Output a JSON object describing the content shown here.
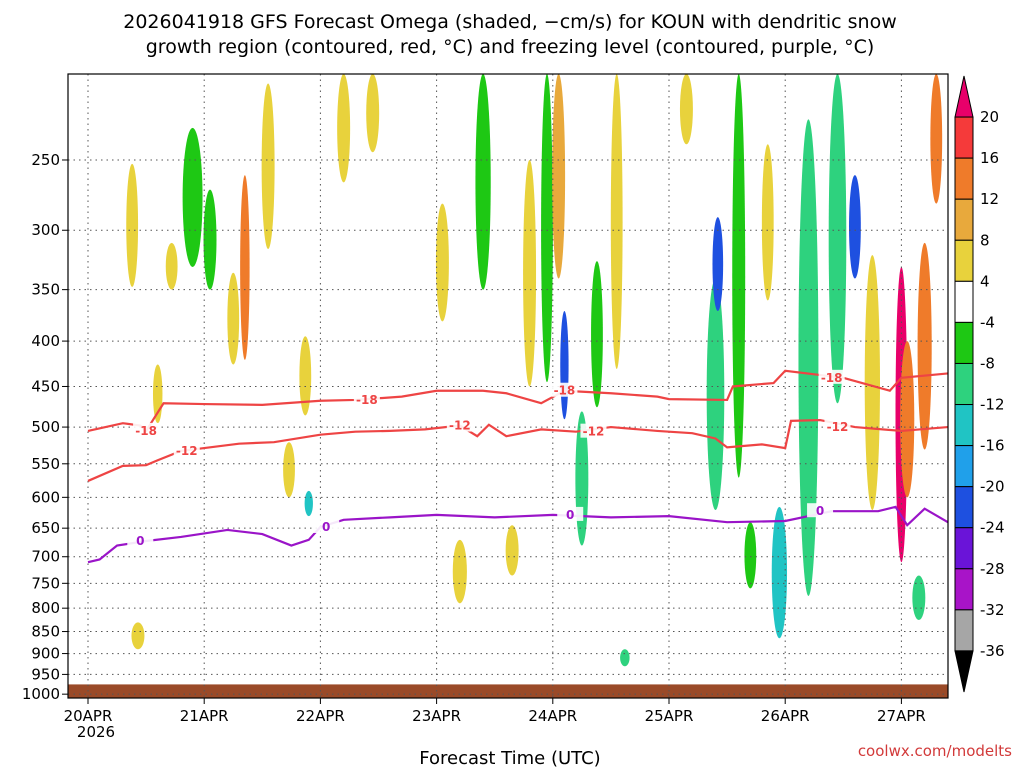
{
  "chart_data": {
    "type": "heatmap",
    "title_line1": "2026041918 GFS Forecast Omega (shaded, −cm/s) for KOUN with dendritic snow",
    "title_line2": "growth region (contoured, red, °C) and freezing level (contoured, purple, °C)",
    "xlabel": "Forecast Time (UTC)",
    "credit": "coolwx.com/modelts",
    "x_ticks": [
      "20APR",
      "21APR",
      "22APR",
      "23APR",
      "24APR",
      "25APR",
      "26APR",
      "27APR"
    ],
    "x_year": "2026",
    "x_range_days": [
      0,
      7.4
    ],
    "y_ticks": [
      250,
      300,
      350,
      400,
      450,
      500,
      550,
      600,
      650,
      700,
      750,
      800,
      850,
      900,
      950,
      1000
    ],
    "y_range_hpa": [
      200,
      1010
    ],
    "colorbar": {
      "labels": [
        20,
        16,
        12,
        8,
        4,
        -4,
        -8,
        -12,
        -16,
        -20,
        -24,
        -28,
        -32,
        -36
      ],
      "colors": [
        "#e8006a",
        "#f53a3a",
        "#ef7b2a",
        "#e8a93c",
        "#e8d23c",
        "#ffffff",
        "#1ec814",
        "#2ed27e",
        "#20c4c4",
        "#20a0ea",
        "#1e50e0",
        "#6a14d8",
        "#a814c8",
        "#a6a6a6",
        "#000000"
      ]
    },
    "ground": {
      "pressure_hpa": 975,
      "color": "#9a4a28"
    },
    "contours": [
      {
        "label": "-18",
        "color": "#ee4444",
        "x": [
          0,
          0.3,
          0.45,
          0.5,
          0.65,
          1.0,
          1.5,
          2.0,
          2.3,
          2.7,
          3.0,
          3.4,
          3.6,
          3.9,
          4.1,
          4.5,
          4.9,
          5.0,
          5.5,
          5.55,
          5.9,
          6.0,
          6.5,
          6.9,
          7.0,
          7.4
        ],
        "y": [
          505,
          495,
          498,
          505,
          470,
          471,
          472,
          467,
          466,
          462,
          455,
          455,
          458,
          470,
          455,
          458,
          462,
          465,
          466,
          450,
          446,
          432,
          440,
          455,
          440,
          435
        ]
      },
      {
        "label": "-12",
        "color": "#ee4444",
        "x": [
          0,
          0.3,
          0.5,
          0.6,
          0.8,
          1.0,
          1.3,
          1.6,
          2.0,
          2.3,
          2.6,
          2.9,
          3.2,
          3.35,
          3.45,
          3.6,
          3.9,
          4.2,
          4.5,
          4.9,
          5.2,
          5.4,
          5.5,
          5.8,
          6.0,
          6.05,
          6.3,
          6.6,
          7.0,
          7.4
        ],
        "y": [
          575,
          553,
          552,
          545,
          532,
          528,
          522,
          520,
          510,
          506,
          505,
          503,
          498,
          512,
          497,
          512,
          503,
          506,
          500,
          505,
          508,
          515,
          527,
          523,
          528,
          492,
          491,
          500,
          505,
          500
        ]
      },
      {
        "label": "0",
        "color": "#9a14c8",
        "x": [
          0,
          0.1,
          0.25,
          0.5,
          0.8,
          1.2,
          1.5,
          1.75,
          1.9,
          2.0,
          2.2,
          2.6,
          3.0,
          3.5,
          4.0,
          4.5,
          5.0,
          5.5,
          6.0,
          6.4,
          6.8,
          6.95,
          7.05,
          7.2,
          7.4
        ],
        "y": [
          710,
          705,
          680,
          672,
          665,
          653,
          660,
          680,
          670,
          648,
          636,
          632,
          628,
          632,
          628,
          632,
          630,
          640,
          638,
          622,
          622,
          615,
          645,
          618,
          640
        ]
      }
    ],
    "cells": [
      {
        "x": 0.38,
        "p": 300,
        "w": 0.05,
        "h": 95,
        "v": 5
      },
      {
        "x": 0.43,
        "p": 860,
        "w": 0.06,
        "h": 60,
        "v": 6
      },
      {
        "x": 0.6,
        "p": 460,
        "w": 0.03,
        "h": 70,
        "v": 5
      },
      {
        "x": 0.72,
        "p": 330,
        "w": 0.05,
        "h": 40,
        "v": 6
      },
      {
        "x": 0.9,
        "p": 280,
        "w": 0.12,
        "h": 100,
        "v": -6
      },
      {
        "x": 1.05,
        "p": 310,
        "w": 0.06,
        "h": 80,
        "v": -7
      },
      {
        "x": 1.25,
        "p": 380,
        "w": 0.05,
        "h": 90,
        "v": 5
      },
      {
        "x": 1.35,
        "p": 340,
        "w": 0.03,
        "h": 160,
        "v": 14
      },
      {
        "x": 1.55,
        "p": 260,
        "w": 0.06,
        "h": 110,
        "v": 5
      },
      {
        "x": 1.73,
        "p": 560,
        "w": 0.05,
        "h": 80,
        "v": 5
      },
      {
        "x": 1.87,
        "p": 440,
        "w": 0.05,
        "h": 90,
        "v": 5
      },
      {
        "x": 1.9,
        "p": 610,
        "w": 0.02,
        "h": 40,
        "v": -14
      },
      {
        "x": 2.2,
        "p": 220,
        "w": 0.06,
        "h": 90,
        "v": 5
      },
      {
        "x": 2.45,
        "p": 210,
        "w": 0.06,
        "h": 70,
        "v": 5
      },
      {
        "x": 3.05,
        "p": 330,
        "w": 0.06,
        "h": 100,
        "v": 6
      },
      {
        "x": 3.2,
        "p": 730,
        "w": 0.07,
        "h": 120,
        "v": 6
      },
      {
        "x": 3.4,
        "p": 260,
        "w": 0.08,
        "h": 180,
        "v": -7
      },
      {
        "x": 3.65,
        "p": 690,
        "w": 0.06,
        "h": 90,
        "v": 6
      },
      {
        "x": 3.8,
        "p": 350,
        "w": 0.06,
        "h": 200,
        "v": 5
      },
      {
        "x": 3.95,
        "p": 320,
        "w": 0.05,
        "h": 250,
        "v": -7
      },
      {
        "x": 4.05,
        "p": 240,
        "w": 0.06,
        "h": 200,
        "v": 8
      },
      {
        "x": 4.1,
        "p": 430,
        "w": 0.02,
        "h": 120,
        "v": -22
      },
      {
        "x": 4.25,
        "p": 580,
        "w": 0.06,
        "h": 200,
        "v": -9
      },
      {
        "x": 4.38,
        "p": 400,
        "w": 0.05,
        "h": 150,
        "v": -7
      },
      {
        "x": 4.55,
        "p": 300,
        "w": 0.05,
        "h": 260,
        "v": 5
      },
      {
        "x": 4.62,
        "p": 910,
        "w": 0.03,
        "h": 40,
        "v": -10
      },
      {
        "x": 5.15,
        "p": 215,
        "w": 0.06,
        "h": 50,
        "v": 5
      },
      {
        "x": 5.4,
        "p": 480,
        "w": 0.1,
        "h": 280,
        "v": -10
      },
      {
        "x": 5.42,
        "p": 330,
        "w": 0.04,
        "h": 80,
        "v": -22
      },
      {
        "x": 5.6,
        "p": 380,
        "w": 0.06,
        "h": 380,
        "v": -8
      },
      {
        "x": 5.7,
        "p": 700,
        "w": 0.05,
        "h": 120,
        "v": -7
      },
      {
        "x": 5.85,
        "p": 300,
        "w": 0.05,
        "h": 120,
        "v": 7
      },
      {
        "x": 5.95,
        "p": 740,
        "w": 0.08,
        "h": 250,
        "v": -14
      },
      {
        "x": 6.2,
        "p": 500,
        "w": 0.12,
        "h": 550,
        "v": -10
      },
      {
        "x": 6.45,
        "p": 330,
        "w": 0.1,
        "h": 280,
        "v": -11
      },
      {
        "x": 6.6,
        "p": 300,
        "w": 0.05,
        "h": 80,
        "v": -22
      },
      {
        "x": 6.75,
        "p": 470,
        "w": 0.08,
        "h": 300,
        "v": 5
      },
      {
        "x": 7.0,
        "p": 520,
        "w": 0.05,
        "h": 380,
        "v": 20
      },
      {
        "x": 7.05,
        "p": 500,
        "w": 0.07,
        "h": 200,
        "v": 13
      },
      {
        "x": 7.2,
        "p": 420,
        "w": 0.07,
        "h": 220,
        "v": 14
      },
      {
        "x": 7.3,
        "p": 230,
        "w": 0.05,
        "h": 100,
        "v": 14
      },
      {
        "x": 7.15,
        "p": 780,
        "w": 0.06,
        "h": 90,
        "v": -10
      }
    ]
  }
}
